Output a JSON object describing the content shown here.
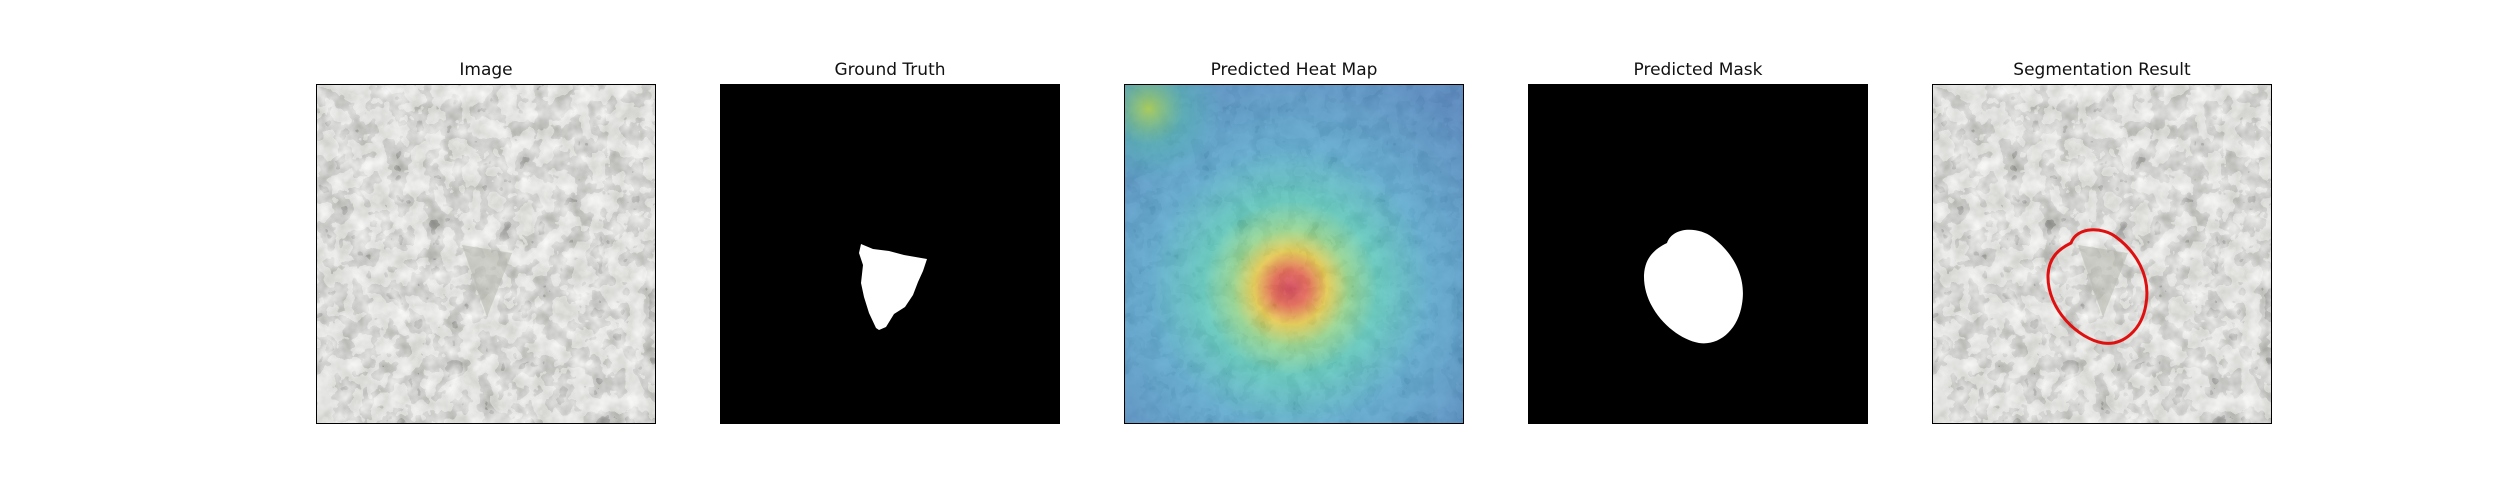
{
  "figure": {
    "panels": [
      {
        "id": "image",
        "title": "Image",
        "icon": "texture-image"
      },
      {
        "id": "ground_truth",
        "title": "Ground Truth",
        "icon": "binary-mask"
      },
      {
        "id": "heatmap",
        "title": "Predicted Heat Map",
        "icon": "heatmap-overlay"
      },
      {
        "id": "pred_mask",
        "title": "Predicted Mask",
        "icon": "binary-mask"
      },
      {
        "id": "segmentation",
        "title": "Segmentation Result",
        "icon": "contour-overlay"
      }
    ]
  },
  "colors": {
    "texture_light": "#9a9b92",
    "texture_dark": "#2e2e2c",
    "mask_bg": "#000000",
    "mask_fg": "#ffffff",
    "contour": "#e01010",
    "heat_low": "#2f6fb5",
    "heat_mid": "#3fbfb0",
    "heat_high": "#d8283a"
  }
}
